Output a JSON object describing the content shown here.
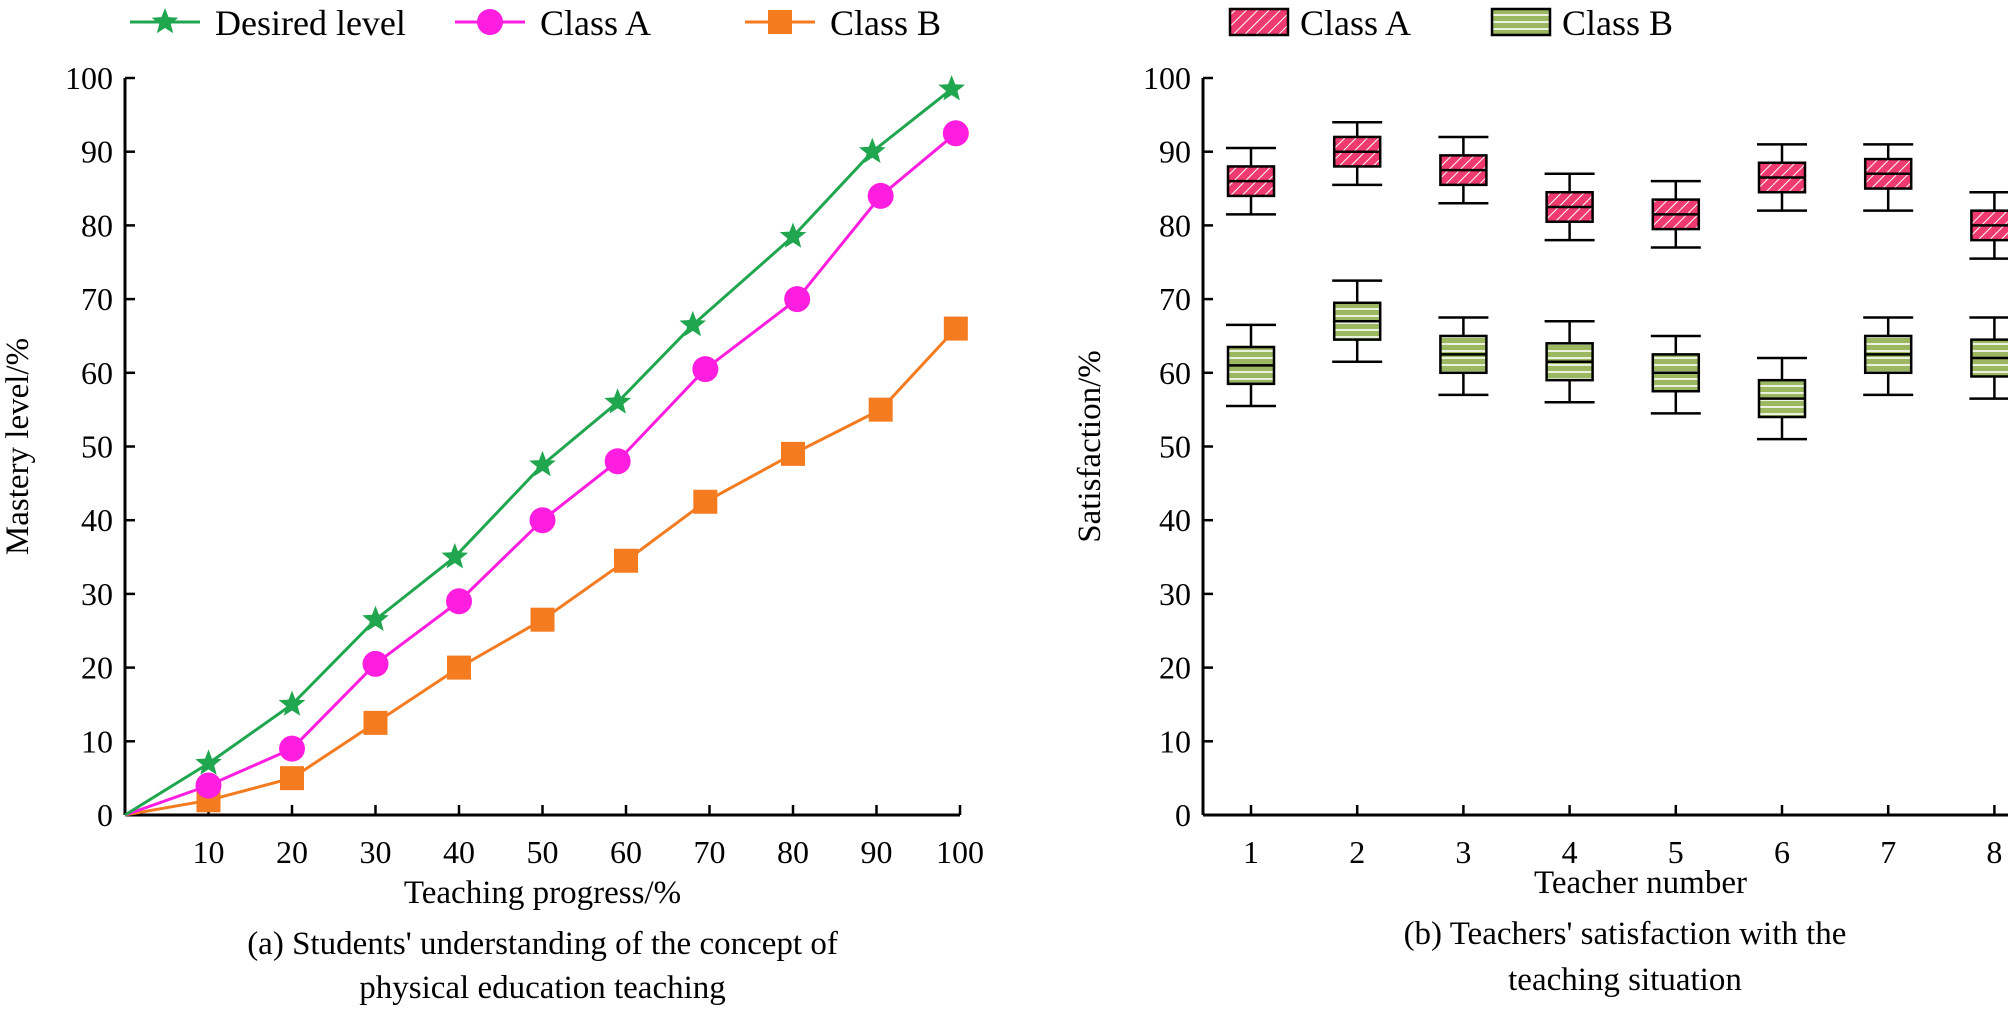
{
  "chart_data": [
    {
      "type": "line",
      "caption": [
        "(a) Students' understanding of the concept of",
        "physical education teaching"
      ],
      "xlabel": "Teaching progress/%",
      "ylabel": "Mastery level/%",
      "xlim": [
        0,
        100
      ],
      "ylim": [
        0,
        100
      ],
      "xticks": [
        "10",
        "20",
        "30",
        "40",
        "50",
        "60",
        "70",
        "80",
        "90",
        "100"
      ],
      "yticks": [
        "0",
        "10",
        "20",
        "30",
        "40",
        "50",
        "60",
        "70",
        "80",
        "90",
        "100"
      ],
      "legend_position": "top",
      "series": [
        {
          "name": "Desired level",
          "color": "#1fa64f",
          "marker": "star",
          "points": [
            [
              0,
              0
            ],
            [
              10,
              7
            ],
            [
              20,
              15
            ],
            [
              30,
              26.5
            ],
            [
              39.5,
              35
            ],
            [
              50,
              47.5
            ],
            [
              59,
              56
            ],
            [
              68,
              66.5
            ],
            [
              80,
              78.5
            ],
            [
              89.5,
              90
            ],
            [
              99,
              98.5
            ]
          ]
        },
        {
          "name": "Class A",
          "color": "#ff1de0",
          "marker": "circle",
          "points": [
            [
              0,
              0
            ],
            [
              10,
              4
            ],
            [
              20,
              9
            ],
            [
              30,
              20.5
            ],
            [
              40,
              29
            ],
            [
              50,
              40
            ],
            [
              59,
              48
            ],
            [
              69.5,
              60.5
            ],
            [
              80.5,
              70
            ],
            [
              90.5,
              84
            ],
            [
              99.5,
              92.5
            ]
          ]
        },
        {
          "name": "Class B",
          "color": "#f47b1f",
          "marker": "square",
          "points": [
            [
              0,
              0
            ],
            [
              10,
              2
            ],
            [
              20,
              5
            ],
            [
              30,
              12.5
            ],
            [
              40,
              20
            ],
            [
              50,
              26.5
            ],
            [
              60,
              34.5
            ],
            [
              69.5,
              42.5
            ],
            [
              80,
              49
            ],
            [
              90.5,
              55
            ],
            [
              99.5,
              66
            ]
          ]
        }
      ]
    },
    {
      "type": "box",
      "caption": [
        "(b) Teachers' satisfaction with the",
        "teaching situation"
      ],
      "xlabel": "Teacher number",
      "ylabel": "Satisfaction/%",
      "ylim": [
        0,
        100
      ],
      "categories": [
        "1",
        "2",
        "3",
        "4",
        "5",
        "6",
        "7",
        "8"
      ],
      "yticks": [
        "0",
        "10",
        "20",
        "30",
        "40",
        "50",
        "60",
        "70",
        "80",
        "90",
        "100"
      ],
      "legend_position": "top",
      "series": [
        {
          "name": "Class A",
          "color": "#ee3a6e",
          "hatch": "diagonal",
          "boxes": [
            {
              "min": 81.5,
              "q1": 84,
              "median": 86,
              "q3": 88,
              "max": 90.5
            },
            {
              "min": 85.5,
              "q1": 88,
              "median": 90,
              "q3": 92,
              "max": 94
            },
            {
              "min": 83,
              "q1": 85.5,
              "median": 87.5,
              "q3": 89.5,
              "max": 92
            },
            {
              "min": 78,
              "q1": 80.5,
              "median": 82.5,
              "q3": 84.5,
              "max": 87
            },
            {
              "min": 77,
              "q1": 79.5,
              "median": 81.5,
              "q3": 83.5,
              "max": 86
            },
            {
              "min": 82,
              "q1": 84.5,
              "median": 86.5,
              "q3": 88.5,
              "max": 91
            },
            {
              "min": 82,
              "q1": 85,
              "median": 87,
              "q3": 89,
              "max": 91
            },
            {
              "min": 75.5,
              "q1": 78,
              "median": 80,
              "q3": 82,
              "max": 84.5
            }
          ]
        },
        {
          "name": "Class B",
          "color": "#9bb860",
          "hatch": "horizontal",
          "boxes": [
            {
              "min": 55.5,
              "q1": 58.5,
              "median": 61,
              "q3": 63.5,
              "max": 66.5
            },
            {
              "min": 61.5,
              "q1": 64.5,
              "median": 67,
              "q3": 69.5,
              "max": 72.5
            },
            {
              "min": 57,
              "q1": 60,
              "median": 62.5,
              "q3": 65,
              "max": 67.5
            },
            {
              "min": 56,
              "q1": 59,
              "median": 61.5,
              "q3": 64,
              "max": 67
            },
            {
              "min": 54.5,
              "q1": 57.5,
              "median": 60,
              "q3": 62.5,
              "max": 65
            },
            {
              "min": 51,
              "q1": 54,
              "median": 56.5,
              "q3": 59,
              "max": 62
            },
            {
              "min": 57,
              "q1": 60,
              "median": 62.5,
              "q3": 65,
              "max": 67.5
            },
            {
              "min": 56.5,
              "q1": 59.5,
              "median": 62,
              "q3": 64.5,
              "max": 67.5
            }
          ]
        }
      ]
    }
  ]
}
